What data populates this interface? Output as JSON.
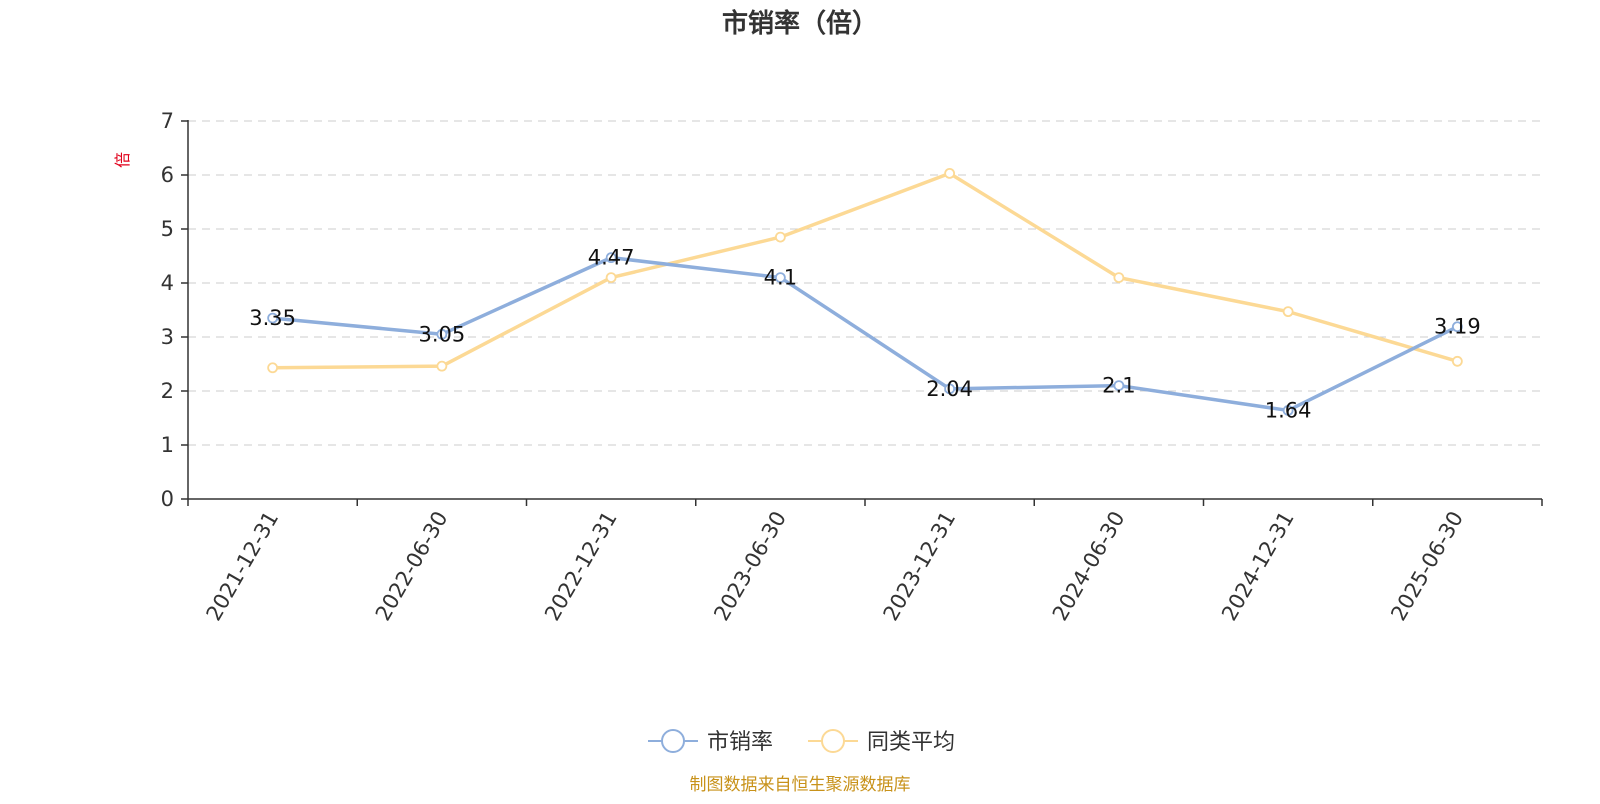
{
  "chart_data": {
    "type": "line",
    "title": "市销率（倍）",
    "ylabel": "倍",
    "xlabel": "",
    "ylim": [
      0,
      7
    ],
    "yticks": [
      0,
      1,
      2,
      3,
      4,
      5,
      6,
      7
    ],
    "grid": true,
    "legend_position": "bottom",
    "categories": [
      "2021-12-31",
      "2022-06-30",
      "2022-12-31",
      "2023-06-30",
      "2023-12-31",
      "2024-06-30",
      "2024-12-31",
      "2025-06-30"
    ],
    "series": [
      {
        "name": "市销率",
        "color": "#8eaedc",
        "values": [
          3.35,
          3.05,
          4.47,
          4.1,
          2.04,
          2.1,
          1.64,
          3.19
        ],
        "labels": [
          "3.35",
          "3.05",
          "4.47",
          "4.1",
          "2.04",
          "2.1",
          "1.64",
          "3.19"
        ]
      },
      {
        "name": "同类平均",
        "color": "#fcd995",
        "values": [
          2.43,
          2.46,
          4.1,
          4.85,
          6.03,
          4.1,
          3.47,
          2.55
        ]
      }
    ]
  },
  "footer": {
    "source": "制图数据来自恒生聚源数据库",
    "source_color": "#c8921a"
  }
}
